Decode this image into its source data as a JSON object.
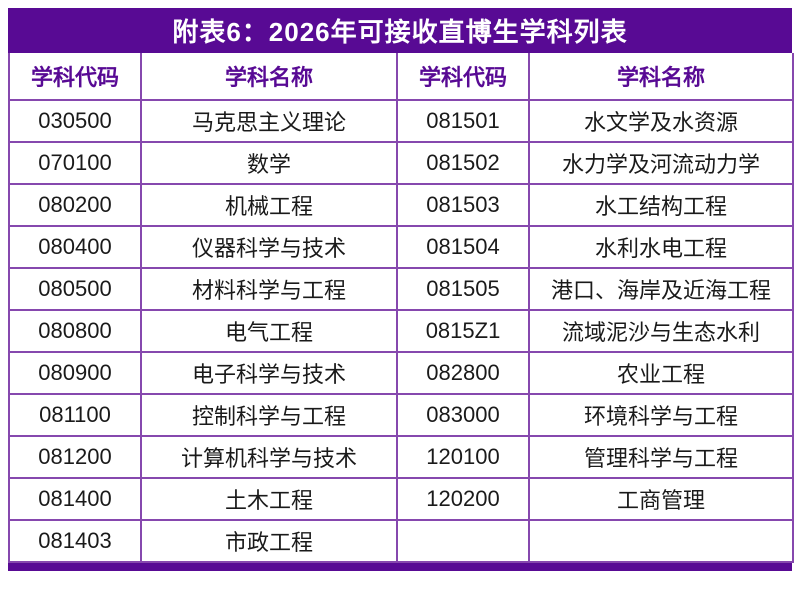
{
  "title": "附表6：2026年可接收直博生学科列表",
  "colors": {
    "title_bg": "#580A94",
    "title_text": "#FFFFFF",
    "header_text": "#580A94",
    "border": "#8648AE",
    "cell_text": "#1A1A1A",
    "page_bg": "#FFFFFF"
  },
  "table": {
    "headers": [
      "学科代码",
      "学科名称",
      "学科代码",
      "学科名称"
    ],
    "rows": [
      [
        "030500",
        "马克思主义理论",
        "081501",
        "水文学及水资源"
      ],
      [
        "070100",
        "数学",
        "081502",
        "水力学及河流动力学"
      ],
      [
        "080200",
        "机械工程",
        "081503",
        "水工结构工程"
      ],
      [
        "080400",
        "仪器科学与技术",
        "081504",
        "水利水电工程"
      ],
      [
        "080500",
        "材料科学与工程",
        "081505",
        "港口、海岸及近海工程"
      ],
      [
        "080800",
        "电气工程",
        "0815Z1",
        "流域泥沙与生态水利"
      ],
      [
        "080900",
        "电子科学与技术",
        "082800",
        "农业工程"
      ],
      [
        "081100",
        "控制科学与工程",
        "083000",
        "环境科学与工程"
      ],
      [
        "081200",
        "计算机科学与技术",
        "120100",
        "管理科学与工程"
      ],
      [
        "081400",
        "土木工程",
        "120200",
        "工商管理"
      ],
      [
        "081403",
        "市政工程",
        "",
        ""
      ]
    ]
  }
}
